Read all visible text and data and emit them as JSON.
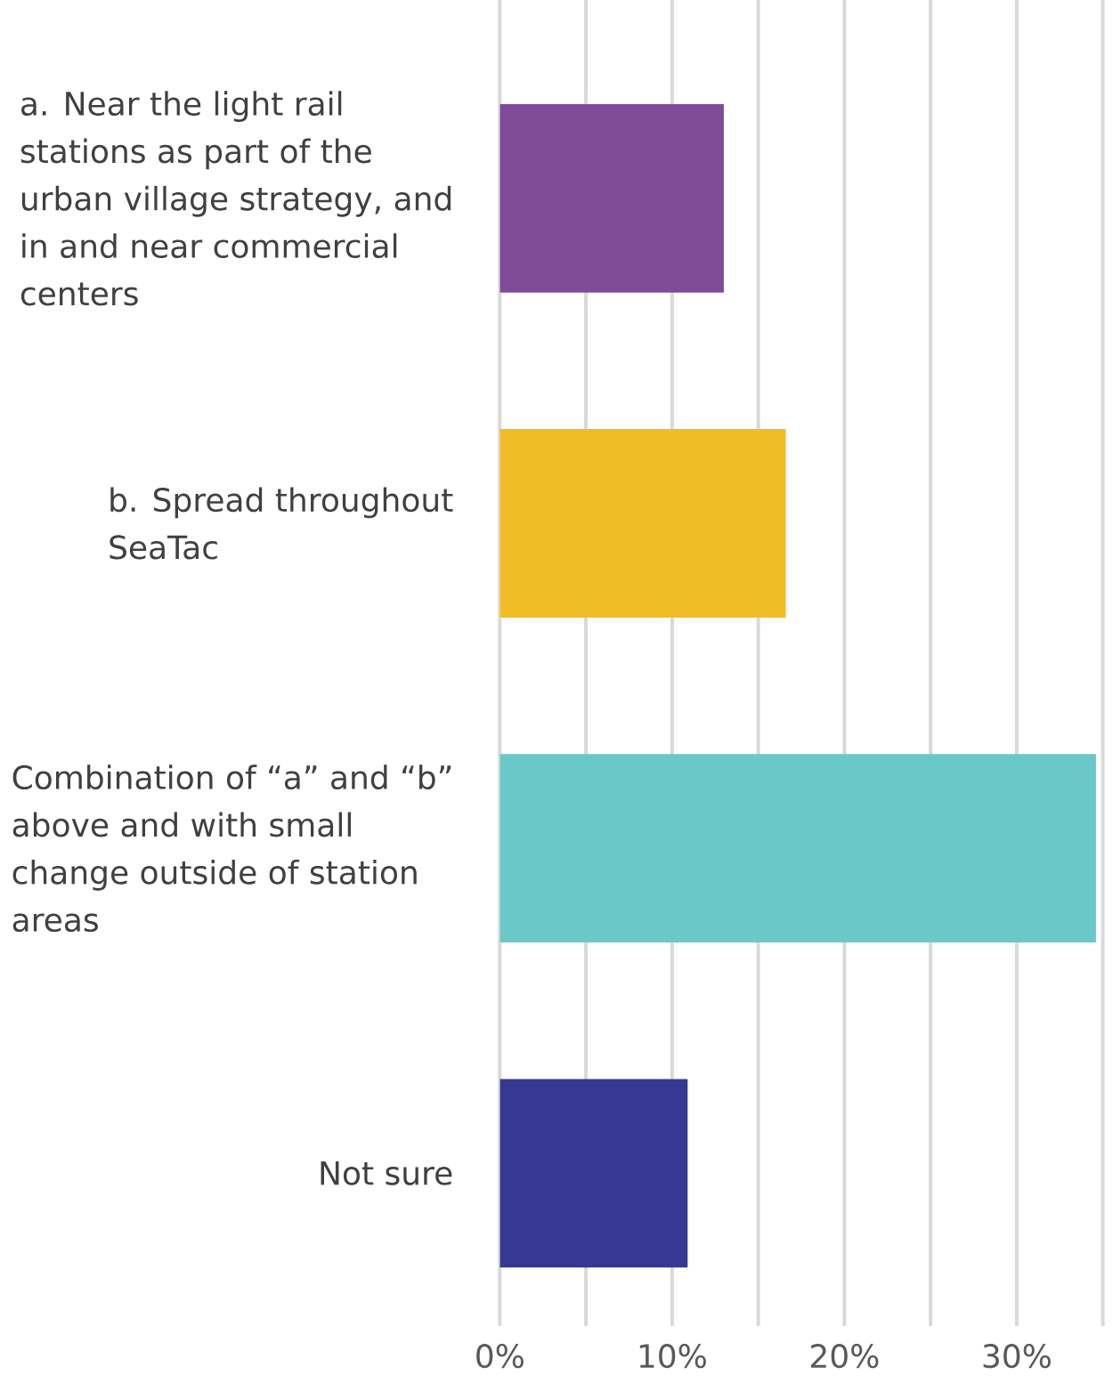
{
  "chart_data": {
    "type": "bar",
    "orientation": "horizontal",
    "categories": [
      "a. Near the light rail stations as part of the urban village strategy, and in and near commercial centers",
      "b. Spread throughout SeaTac",
      "Combination of “a” and “b” above and with small change outside of station areas",
      "Not sure"
    ],
    "values": [
      13.0,
      16.6,
      34.6,
      10.9
    ],
    "colors": [
      "#7f4a98",
      "#f0bd27",
      "#6bc8c9",
      "#363891"
    ],
    "xlim": [
      0,
      35
    ],
    "xticks": [
      {
        "value": 0,
        "label": "0%"
      },
      {
        "value": 5,
        "label": null
      },
      {
        "value": 10,
        "label": "10%"
      },
      {
        "value": 15,
        "label": null
      },
      {
        "value": 20,
        "label": "20%"
      },
      {
        "value": 25,
        "label": null
      },
      {
        "value": 30,
        "label": "30%"
      },
      {
        "value": 35,
        "label": null
      }
    ],
    "grid": "x"
  }
}
